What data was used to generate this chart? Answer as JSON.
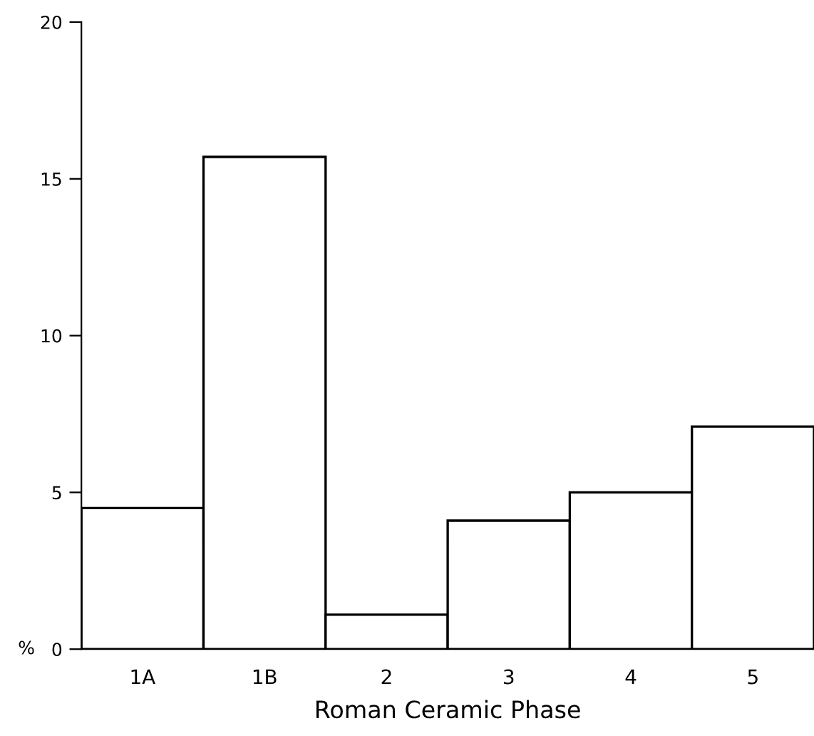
{
  "chart_data": {
    "type": "bar",
    "xlabel": "Roman Ceramic Phase",
    "ylabel": "%",
    "categories": [
      "1A",
      "1B",
      "2",
      "3",
      "4",
      "5"
    ],
    "values": [
      4.5,
      15.7,
      1.1,
      4.1,
      5.0,
      7.1
    ],
    "color": "#ffffff",
    "ylim": [
      0,
      20
    ],
    "yticks": [
      0,
      5,
      10,
      15,
      20
    ],
    "grid": false
  }
}
